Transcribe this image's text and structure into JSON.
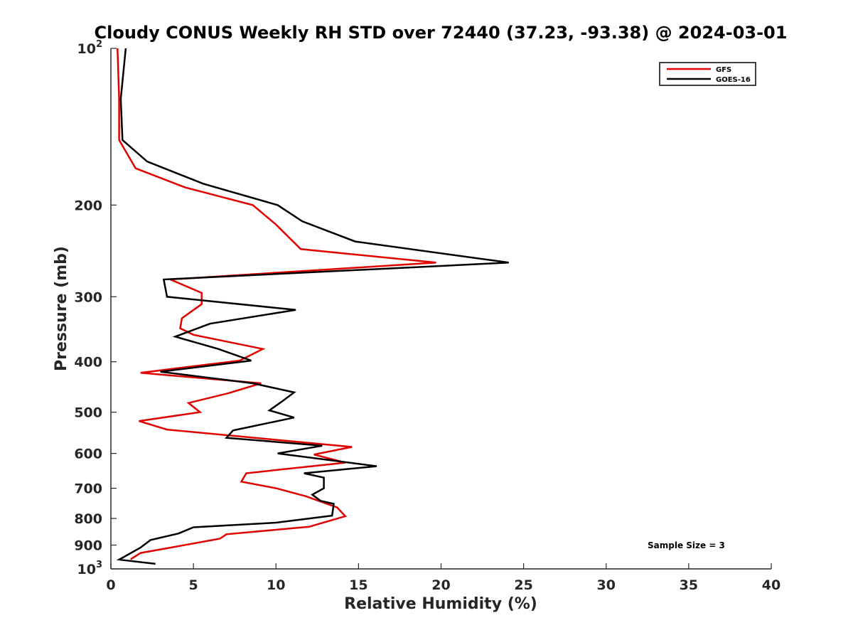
{
  "chart_data": {
    "type": "line",
    "title": "Cloudy CONUS Weekly RH STD over 72440 (37.23, -93.38) @ 2024-03-01",
    "xlabel": "Relative Humidity (%)",
    "ylabel": "Pressure (mb)",
    "xlim": [
      0,
      40
    ],
    "ylim": [
      100,
      1000
    ],
    "y_scale": "log",
    "y_reversed": true,
    "xticks": [
      0,
      5,
      10,
      15,
      20,
      25,
      30,
      35,
      40
    ],
    "xtick_labels": [
      "0",
      "5",
      "10",
      "15",
      "20",
      "25",
      "30",
      "35",
      "40"
    ],
    "yticks": [
      200,
      300,
      400,
      500,
      600,
      700,
      800,
      900
    ],
    "ytick_labels": [
      "200",
      "300",
      "400",
      "500",
      "600",
      "700",
      "800",
      "900"
    ],
    "ytick_top_base": "10",
    "ytick_top_exp": "2",
    "ytick_bottom_base": "10",
    "ytick_bottom_exp": "3",
    "grid": false,
    "legend_position": "top-right",
    "annotation": "Sample Size = 3",
    "series": [
      {
        "name": "GFS",
        "color": "#e00000",
        "points": [
          [
            0.4,
            100
          ],
          [
            0.5,
            125
          ],
          [
            0.5,
            150
          ],
          [
            1.5,
            170
          ],
          [
            4.5,
            185
          ],
          [
            8.6,
            200
          ],
          [
            10.0,
            218
          ],
          [
            11.5,
            243
          ],
          [
            19.7,
            258
          ],
          [
            3.6,
            278
          ],
          [
            5.5,
            295
          ],
          [
            5.5,
            310
          ],
          [
            4.3,
            330
          ],
          [
            4.2,
            345
          ],
          [
            5.0,
            355
          ],
          [
            9.2,
            378
          ],
          [
            7.8,
            398
          ],
          [
            1.8,
            420
          ],
          [
            9.1,
            440
          ],
          [
            7.1,
            460
          ],
          [
            4.7,
            480
          ],
          [
            5.4,
            500
          ],
          [
            1.7,
            520
          ],
          [
            3.4,
            540
          ],
          [
            10.0,
            565
          ],
          [
            14.6,
            583
          ],
          [
            12.3,
            603
          ],
          [
            14.2,
            625
          ],
          [
            8.2,
            655
          ],
          [
            7.9,
            680
          ],
          [
            10.0,
            700
          ],
          [
            11.8,
            725
          ],
          [
            13.7,
            762
          ],
          [
            14.2,
            792
          ],
          [
            12.0,
            830
          ],
          [
            7.0,
            858
          ],
          [
            6.6,
            875
          ],
          [
            4.3,
            902
          ],
          [
            1.8,
            932
          ],
          [
            1.2,
            958
          ]
        ]
      },
      {
        "name": "GOES-16",
        "color": "#000000",
        "points": [
          [
            0.9,
            100
          ],
          [
            0.6,
            125
          ],
          [
            0.7,
            150
          ],
          [
            2.2,
            165
          ],
          [
            5.6,
            182
          ],
          [
            10.1,
            200
          ],
          [
            11.6,
            215
          ],
          [
            14.8,
            235
          ],
          [
            24.1,
            258
          ],
          [
            3.2,
            278
          ],
          [
            3.4,
            300
          ],
          [
            11.2,
            318
          ],
          [
            6.0,
            338
          ],
          [
            3.9,
            358
          ],
          [
            6.5,
            378
          ],
          [
            8.5,
            398
          ],
          [
            3.0,
            418
          ],
          [
            8.6,
            440
          ],
          [
            11.1,
            458
          ],
          [
            10.4,
            476
          ],
          [
            9.6,
            496
          ],
          [
            11.1,
            512
          ],
          [
            7.4,
            542
          ],
          [
            7.0,
            560
          ],
          [
            12.8,
            580
          ],
          [
            10.1,
            600
          ],
          [
            16.1,
            635
          ],
          [
            11.7,
            655
          ],
          [
            12.9,
            668
          ],
          [
            12.9,
            700
          ],
          [
            12.2,
            720
          ],
          [
            12.7,
            740
          ],
          [
            13.5,
            750
          ],
          [
            13.4,
            790
          ],
          [
            10.0,
            815
          ],
          [
            5.0,
            832
          ],
          [
            4.1,
            855
          ],
          [
            2.4,
            880
          ],
          [
            1.8,
            910
          ],
          [
            0.5,
            960
          ],
          [
            2.7,
            978
          ]
        ]
      }
    ]
  }
}
